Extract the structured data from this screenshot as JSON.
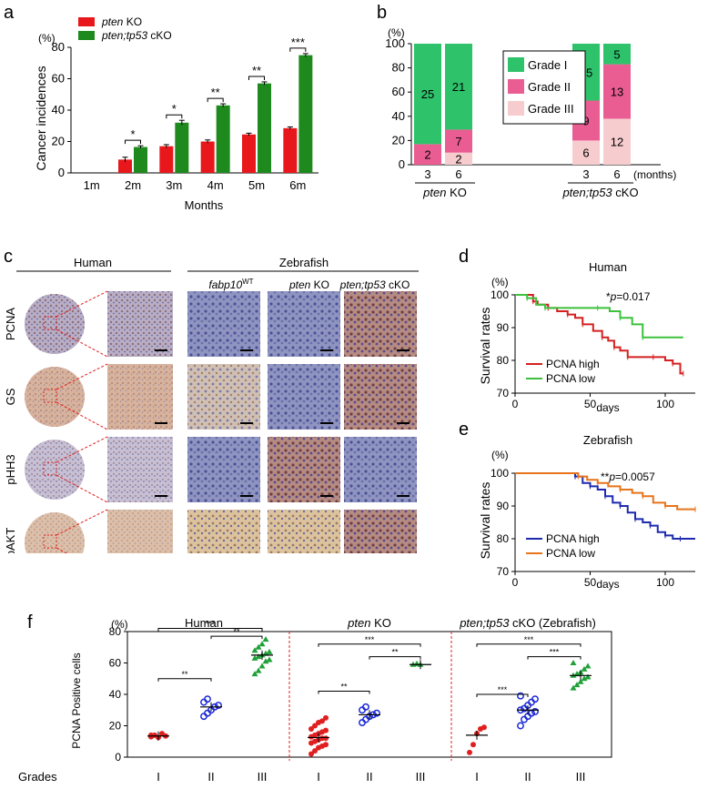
{
  "colors": {
    "pten_ko": "#e8171b",
    "pten_tp53": "#1e8a1e",
    "grade1": "#2ec26b",
    "grade2": "#ea5d92",
    "grade3": "#f7cccf",
    "human_high": "#d42020",
    "human_low": "#3cc13c",
    "zf_high": "#1e2ab0",
    "zf_low": "#e8731a",
    "red_dots": "#e02020",
    "blue_dots": "#1a28d8",
    "green_dots": "#20a038",
    "divider": "#e02020"
  },
  "panel_a": {
    "letter": "a",
    "unit": "(%)",
    "legend": [
      {
        "italic": "pten",
        "rest": " KO"
      },
      {
        "italic": "pten;tp53",
        "rest": " cKO"
      }
    ],
    "chart_data": {
      "type": "bar",
      "categories": [
        "1m",
        "2m",
        "3m",
        "4m",
        "5m",
        "6m"
      ],
      "series": [
        {
          "name": "pten KO",
          "values": [
            0,
            8.5,
            17,
            20,
            24.5,
            28.5
          ],
          "errors": [
            0,
            1.5,
            1,
            1,
            0.8,
            0.8
          ]
        },
        {
          "name": "pten;tp53 cKO",
          "values": [
            0,
            16.5,
            32,
            43,
            57,
            75
          ],
          "errors": [
            0,
            0.8,
            1.5,
            1,
            1,
            1
          ]
        }
      ],
      "significance": [
        "",
        "*",
        "*",
        "**",
        "**",
        "***"
      ],
      "xlabel": "Months",
      "ylabel": "Cancer incidences",
      "ylim": [
        0,
        80
      ],
      "yticks": [
        0,
        20,
        40,
        60,
        80
      ]
    }
  },
  "panel_b": {
    "letter": "b",
    "unit": "(%)",
    "months_label": "(months)",
    "chart_data": {
      "type": "bar",
      "stacked": true,
      "categories": [
        "3",
        "6",
        "3",
        "6"
      ],
      "groups": [
        {
          "italic": "pten",
          "rest": " KO"
        },
        {
          "italic": "pten;tp53",
          "rest": " cKO"
        }
      ],
      "series": [
        {
          "name": "Grade III",
          "percent": [
            0,
            10,
            20,
            38
          ],
          "counts": [
            "",
            "2",
            "6",
            "12"
          ]
        },
        {
          "name": "Grade II",
          "percent": [
            17,
            19,
            33,
            45
          ],
          "counts": [
            "2",
            "7",
            "9",
            "13"
          ]
        },
        {
          "name": "Grade I",
          "percent": [
            83,
            71,
            47,
            17
          ],
          "counts": [
            "25",
            "21",
            "15",
            "5"
          ]
        }
      ],
      "ylim": [
        0,
        100
      ],
      "yticks": [
        0,
        20,
        40,
        60,
        80,
        100
      ]
    }
  },
  "panel_c": {
    "letter": "c",
    "human_header": "Human",
    "zebrafish_header": "Zebrafish",
    "columns": [
      {
        "italic": "fabp10",
        "sup": "WT",
        "rest": ""
      },
      {
        "italic": "pten",
        "sup": "",
        "rest": " KO"
      },
      {
        "italic": "pten;tp53",
        "sup": "",
        "rest": " cKO"
      }
    ],
    "rows": [
      "PCNA",
      "GS",
      "pHH3",
      "pAKT"
    ]
  },
  "panel_d": {
    "letter": "d",
    "title": "Human",
    "unit": "(%)",
    "pvalue_prefix": "*",
    "pvalue_italic": "p",
    "pvalue_rest": "=0.017",
    "chart_data": {
      "type": "line",
      "step": true,
      "series": [
        {
          "name": "PCNA high",
          "x": [
            0,
            12,
            15,
            22,
            28,
            35,
            40,
            45,
            52,
            58,
            62,
            66,
            70,
            75,
            82,
            92,
            100,
            105,
            110,
            112
          ],
          "y": [
            100,
            98,
            97,
            96,
            95,
            94,
            93,
            91,
            89,
            87,
            86,
            84,
            83,
            81,
            81,
            81,
            80,
            79,
            76,
            76
          ]
        },
        {
          "name": "PCNA low",
          "x": [
            0,
            8,
            14,
            20,
            30,
            55,
            63,
            70,
            78,
            85,
            112
          ],
          "y": [
            100,
            99,
            97,
            96,
            96,
            96,
            95,
            93,
            91,
            87,
            87
          ]
        }
      ],
      "xlabel": "days",
      "ylabel": "Survival rates",
      "xlim": [
        0,
        120
      ],
      "ylim": [
        70,
        100
      ],
      "xticks": [
        0,
        50,
        100
      ],
      "yticks": [
        70,
        80,
        90,
        100
      ]
    }
  },
  "panel_e": {
    "letter": "e",
    "title": "Zebrafish",
    "unit": "(%)",
    "pvalue_prefix": "**",
    "pvalue_italic": "p",
    "pvalue_rest": "=0.0057",
    "chart_data": {
      "type": "line",
      "step": true,
      "series": [
        {
          "name": "PCNA high",
          "x": [
            0,
            40,
            45,
            50,
            55,
            60,
            65,
            70,
            75,
            80,
            85,
            90,
            95,
            100,
            105,
            110,
            120
          ],
          "y": [
            100,
            99,
            97,
            96,
            95,
            93,
            91,
            90,
            88,
            86,
            85,
            84,
            82,
            81,
            80,
            80,
            80
          ]
        },
        {
          "name": "PCNA low",
          "x": [
            0,
            42,
            48,
            55,
            62,
            70,
            78,
            85,
            92,
            100,
            108,
            120
          ],
          "y": [
            100,
            99,
            98,
            97,
            96,
            95,
            94,
            93,
            91,
            90,
            89,
            89
          ]
        }
      ],
      "xlabel": "days",
      "ylabel": "Survival rates",
      "xlim": [
        0,
        120
      ],
      "ylim": [
        70,
        100
      ],
      "xticks": [
        0,
        50,
        100
      ],
      "yticks": [
        70,
        80,
        90,
        100
      ]
    }
  },
  "panel_f": {
    "letter": "f",
    "unit": "(%)",
    "group_titles": [
      {
        "italic": "",
        "rest": "Human"
      },
      {
        "italic": "pten",
        "rest": " KO"
      },
      {
        "italic": "pten;tp53",
        "rest": " cKO  (Zebrafish)"
      }
    ],
    "grades_label": "Grades",
    "chart_data": {
      "type": "scatter",
      "ylabel": "PCNA Positive cells",
      "ylim": [
        0,
        80
      ],
      "yticks": [
        0,
        20,
        40,
        60,
        80
      ],
      "categories": [
        "I",
        "II",
        "III",
        "I",
        "II",
        "III",
        "I",
        "II",
        "III"
      ],
      "means": [
        13.5,
        32,
        65,
        12.5,
        27,
        59,
        14,
        30,
        52
      ],
      "points": [
        [
          13,
          14,
          12.5,
          15,
          13.5,
          14
        ],
        [
          26,
          28,
          30,
          32,
          33,
          35,
          37
        ],
        [
          53,
          55,
          58,
          61,
          62,
          63,
          64,
          65,
          66,
          67,
          68,
          70,
          72,
          75
        ],
        [
          2,
          4,
          6,
          7,
          8,
          9,
          10,
          11,
          12,
          12,
          13,
          14,
          15,
          16,
          17,
          18,
          20,
          22,
          23,
          25
        ],
        [
          22,
          24,
          26,
          27,
          28,
          30,
          32
        ],
        [
          59,
          59.5,
          59
        ],
        [
          3,
          8,
          15,
          18,
          19
        ],
        [
          20,
          24,
          26,
          28,
          29,
          30,
          31,
          33,
          35,
          37,
          39
        ],
        [
          44,
          46,
          48,
          50,
          51,
          52,
          53,
          54,
          56,
          58,
          60
        ]
      ],
      "brackets": [
        {
          "from": 0,
          "to": 1,
          "label": "**",
          "y": 50
        },
        {
          "from": 0,
          "to": 2,
          "label": "***",
          "y": 82
        },
        {
          "from": 1,
          "to": 2,
          "label": "**",
          "y": 77
        },
        {
          "from": 3,
          "to": 4,
          "label": "**",
          "y": 42
        },
        {
          "from": 3,
          "to": 5,
          "label": "***",
          "y": 72
        },
        {
          "from": 4,
          "to": 5,
          "label": "**",
          "y": 64
        },
        {
          "from": 6,
          "to": 7,
          "label": "***",
          "y": 40
        },
        {
          "from": 6,
          "to": 8,
          "label": "***",
          "y": 72
        },
        {
          "from": 7,
          "to": 8,
          "label": "***",
          "y": 64
        }
      ]
    }
  }
}
